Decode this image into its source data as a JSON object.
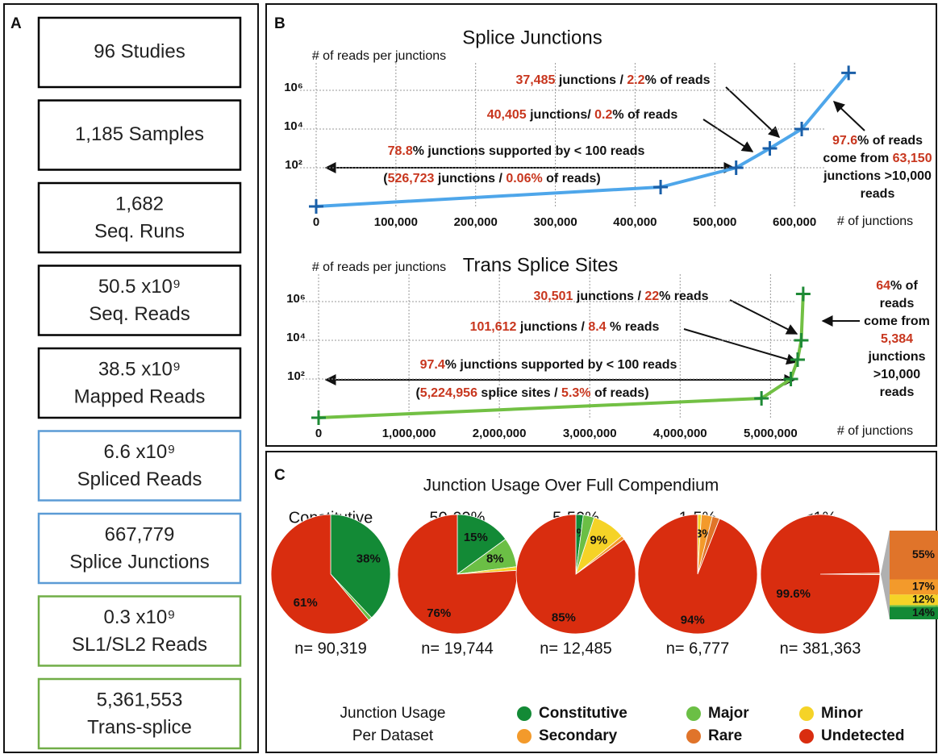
{
  "panel_labels": [
    "A",
    "B",
    "C"
  ],
  "panel_a": {
    "boxes": [
      {
        "lines": [
          "96 Studies"
        ],
        "color": "#000000"
      },
      {
        "lines": [
          "1,185 Samples"
        ],
        "color": "#000000"
      },
      {
        "lines": [
          "1,682",
          "Seq. Runs"
        ],
        "color": "#000000"
      },
      {
        "lines": [
          "50.5 x10⁹",
          "Seq. Reads"
        ],
        "color": "#000000"
      },
      {
        "lines": [
          "38.5 x10⁹",
          "Mapped Reads"
        ],
        "color": "#000000"
      },
      {
        "lines": [
          "6.6 x10⁹",
          "Spliced Reads"
        ],
        "color": "#5b9bd5"
      },
      {
        "lines": [
          "667,779",
          "Splice Junctions"
        ],
        "color": "#5b9bd5"
      },
      {
        "lines": [
          "0.3 x10⁹",
          "SL1/SL2 Reads"
        ],
        "color": "#70ad47"
      },
      {
        "lines": [
          "5,361,553",
          "Trans-splice"
        ],
        "color": "#70ad47"
      }
    ]
  },
  "panel_c_title": "Junction Usage Over Full Compendium",
  "chart_data": [
    {
      "type": "line",
      "title": "Splice Junctions",
      "ylabel": "# of reads per junctions",
      "xlabel": "# of junctions",
      "x": [
        0,
        432000,
        526723,
        569000,
        609000,
        667779
      ],
      "values": [
        1,
        10,
        100,
        1000,
        10000,
        8000000
      ],
      "color": "#4ea6ea",
      "marker_color": "#1a5fa8",
      "log_y": true,
      "grid": true,
      "xlim": [
        0,
        700000
      ],
      "ylim": [
        1,
        10000000
      ],
      "xticks": [
        0,
        {
          "value": 100000,
          "label": "100,000"
        },
        {
          "value": 200000,
          "label": "200,000"
        },
        {
          "value": 300000,
          "label": "300,000"
        },
        {
          "value": 400000,
          "label": "400,000"
        },
        {
          "value": 500000,
          "label": "500,000"
        },
        {
          "value": 600000,
          "label": "600,000"
        }
      ],
      "yticks": [
        {
          "value": 100,
          "label": "10²"
        },
        {
          "value": 10000,
          "label": "10⁴"
        },
        {
          "value": 1000000,
          "label": "10⁶"
        }
      ],
      "annotations": [
        {
          "lines": [
            [
              {
                "text": "37,485",
                "color": "#c8361e"
              },
              {
                "text": " junctions / ",
                "color": "#111111"
              },
              {
                "text": "2.2",
                "color": "#c8361e"
              },
              {
                "text": "% of reads",
                "color": "#111111"
              }
            ]
          ]
        },
        {
          "lines": [
            [
              {
                "text": "40,405",
                "color": "#c8361e"
              },
              {
                "text": " junctions/ ",
                "color": "#111111"
              },
              {
                "text": "0.2",
                "color": "#c8361e"
              },
              {
                "text": "% of reads",
                "color": "#111111"
              }
            ]
          ]
        },
        {
          "lines": [
            [
              {
                "text": "78.8",
                "color": "#c8361e"
              },
              {
                "text": "% junctions supported by < 100 reads",
                "color": "#111111"
              }
            ]
          ]
        },
        {
          "lines": [
            [
              {
                "text": "(",
                "color": "#111111"
              },
              {
                "text": "526,723",
                "color": "#c8361e"
              },
              {
                "text": " junctions / ",
                "color": "#111111"
              },
              {
                "text": "0.06%",
                "color": "#c8361e"
              },
              {
                "text": " of reads)",
                "color": "#111111"
              }
            ]
          ]
        },
        {
          "lines": [
            [
              {
                "text": "97.6",
                "color": "#c8361e"
              },
              {
                "text": "% of reads",
                "color": "#111111"
              }
            ],
            [
              {
                "text": "come from ",
                "color": "#111111"
              },
              {
                "text": "63,150",
                "color": "#c8361e"
              }
            ],
            [
              {
                "text": "junctions >10,000",
                "color": "#111111"
              }
            ],
            [
              {
                "text": "reads",
                "color": "#111111"
              }
            ]
          ]
        }
      ]
    },
    {
      "type": "line",
      "title": "Trans Splice Sites",
      "ylabel": "# of reads per junctions",
      "xlabel": "# of junctions",
      "x": [
        0,
        4900000,
        5224956,
        5300000,
        5340000,
        5361553
      ],
      "values": [
        1,
        10,
        100,
        1000,
        10000,
        2500000
      ],
      "color": "#72c044",
      "marker_color": "#1e8a36",
      "log_y": true,
      "grid": true,
      "xlim": [
        0,
        5800000
      ],
      "ylim": [
        1,
        10000000
      ],
      "xticks": [
        0,
        {
          "value": 1000000,
          "label": "1,000,000"
        },
        {
          "value": 2000000,
          "label": "2,000,000"
        },
        {
          "value": 3000000,
          "label": "3,000,000"
        },
        {
          "value": 4000000,
          "label": "4,000,000"
        },
        {
          "value": 5000000,
          "label": "5,000,000"
        }
      ],
      "yticks": [
        {
          "value": 100,
          "label": "10²"
        },
        {
          "value": 10000,
          "label": "10⁴"
        },
        {
          "value": 1000000,
          "label": "10⁶"
        }
      ],
      "annotations": [
        {
          "lines": [
            [
              {
                "text": "30,501",
                "color": "#c8361e"
              },
              {
                "text": " junctions / ",
                "color": "#111111"
              },
              {
                "text": "22",
                "color": "#c8361e"
              },
              {
                "text": "% reads",
                "color": "#111111"
              }
            ]
          ]
        },
        {
          "lines": [
            [
              {
                "text": "101,612",
                "color": "#c8361e"
              },
              {
                "text": " junctions / ",
                "color": "#111111"
              },
              {
                "text": "8.4",
                "color": "#c8361e"
              },
              {
                "text": " % reads",
                "color": "#111111"
              }
            ]
          ]
        },
        {
          "lines": [
            [
              {
                "text": "97.4",
                "color": "#c8361e"
              },
              {
                "text": "% junctions supported by < 100 reads",
                "color": "#111111"
              }
            ]
          ]
        },
        {
          "lines": [
            [
              {
                "text": "(",
                "color": "#111111"
              },
              {
                "text": "5,224,956",
                "color": "#c8361e"
              },
              {
                "text": " splice sites / ",
                "color": "#111111"
              },
              {
                "text": "5.3%",
                "color": "#c8361e"
              },
              {
                "text": " of reads)",
                "color": "#111111"
              }
            ]
          ]
        },
        {
          "lines": [
            [
              {
                "text": "64",
                "color": "#c8361e"
              },
              {
                "text": "% of",
                "color": "#111111"
              }
            ],
            [
              {
                "text": "reads",
                "color": "#111111"
              }
            ],
            [
              {
                "text": "come from",
                "color": "#111111"
              }
            ],
            [
              {
                "text": "5,384",
                "color": "#c8361e"
              }
            ],
            [
              {
                "text": "junctions",
                "color": "#111111"
              }
            ],
            [
              {
                "text": ">10,000",
                "color": "#111111"
              }
            ],
            [
              {
                "text": "reads",
                "color": "#111111"
              }
            ]
          ]
        }
      ]
    },
    {
      "type": "pie",
      "title": "Constitutive",
      "n_label": "n= 90,319",
      "categories": [
        "Constitutive",
        "Major",
        "Undetected"
      ],
      "values": [
        38,
        1,
        61
      ],
      "value_labels": [
        "38%",
        null,
        "61%"
      ],
      "colors": [
        "#138a36",
        "#6bbf45",
        "#d92d0f"
      ]
    },
    {
      "type": "pie",
      "title": "50-99%",
      "n_label": "n= 19,744",
      "categories": [
        "Constitutive",
        "Major",
        "Minor",
        "Undetected"
      ],
      "values": [
        15,
        8,
        1,
        76
      ],
      "value_labels": [
        "15%",
        "8%",
        null,
        "76%"
      ],
      "colors": [
        "#138a36",
        "#6bbf45",
        "#f5d327",
        "#d92d0f"
      ]
    },
    {
      "type": "pie",
      "title": "5-50%",
      "n_label": "n= 12,485",
      "categories": [
        "Constitutive",
        "Major",
        "Minor",
        "Secondary",
        "Undetected"
      ],
      "values": [
        2,
        3,
        9,
        1,
        85
      ],
      "value_labels": [
        "2%",
        null,
        "9%",
        null,
        "85%"
      ],
      "colors": [
        "#138a36",
        "#6bbf45",
        "#f5d327",
        "#f39a2b",
        "#d92d0f"
      ]
    },
    {
      "type": "pie",
      "title": "1-5%",
      "n_label": "n= 6,777",
      "categories": [
        "Minor",
        "Secondary",
        "Rare",
        "Undetected"
      ],
      "values": [
        1,
        3,
        2,
        94
      ],
      "value_labels": [
        null,
        "3%",
        null,
        "94%"
      ],
      "colors": [
        "#f5d327",
        "#f39a2b",
        "#e0742a",
        "#d92d0f"
      ]
    },
    {
      "type": "pie",
      "title": "<1%",
      "n_label": "n= 381,363",
      "categories": [
        "Rare",
        "Undetected"
      ],
      "values": [
        0.4,
        99.6
      ],
      "value_labels": [
        null,
        "99.6%"
      ],
      "colors": [
        "#e0742a",
        "#d92d0f"
      ]
    },
    {
      "type": "stacked_bar",
      "categories": [
        "Constitutive",
        "Major",
        "Minor",
        "Secondary",
        "Rare"
      ],
      "values": [
        14,
        2,
        12,
        17,
        55
      ],
      "value_labels": [
        "14%",
        null,
        "12%",
        "17%",
        "55%"
      ],
      "colors": [
        "#138a36",
        "#6bbf45",
        "#f5d327",
        "#f39a2b",
        "#e0742a"
      ]
    }
  ],
  "legend": {
    "title": [
      "Junction Usage",
      "Per Dataset"
    ],
    "items": [
      {
        "name": "Constitutive",
        "color": "#138a36"
      },
      {
        "name": "Major",
        "color": "#6bbf45"
      },
      {
        "name": "Minor",
        "color": "#f5d327"
      },
      {
        "name": "Secondary",
        "color": "#f39a2b"
      },
      {
        "name": "Rare",
        "color": "#e0742a"
      },
      {
        "name": "Undetected",
        "color": "#d92d0f"
      }
    ]
  }
}
